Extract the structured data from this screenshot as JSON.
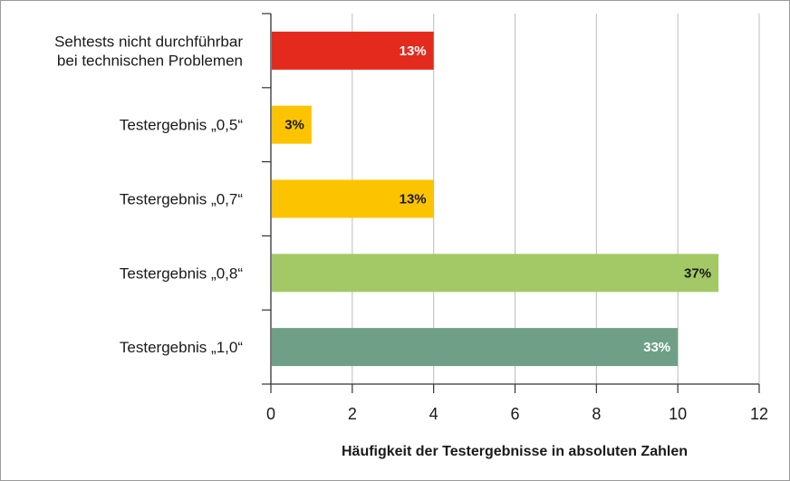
{
  "chart_data": {
    "type": "bar",
    "orientation": "horizontal",
    "categories": [
      [
        "Sehtests nicht durchführbar",
        "bei technischen Problemen"
      ],
      [
        "Testergebnis „0,5“"
      ],
      [
        "Testergebnis „0,7“"
      ],
      [
        "Testergebnis „0,8“"
      ],
      [
        "Testergebnis „1,0“"
      ]
    ],
    "values": [
      4,
      1,
      4,
      11,
      10
    ],
    "value_labels": [
      "13%",
      "3%",
      "13%",
      "37%",
      "33%"
    ],
    "colors": [
      "#e32a1c",
      "#fcc400",
      "#fcc400",
      "#a3c966",
      "#6fa087"
    ],
    "label_colors": [
      "#ffffff",
      "#1a1a1a",
      "#1a1a1a",
      "#1a1a1a",
      "#ffffff"
    ],
    "xlim": [
      0,
      12
    ],
    "xticks": [
      0,
      2,
      4,
      6,
      8,
      10,
      12
    ],
    "xlabel": "Häufigkeit der Testergebnisse in absoluten Zahlen",
    "ylabel": "",
    "grid": true
  }
}
